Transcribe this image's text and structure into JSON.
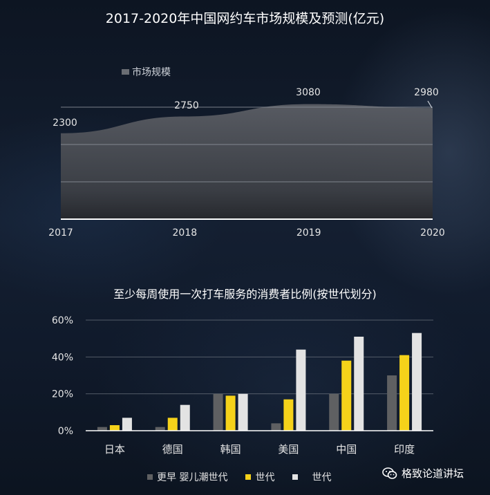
{
  "colors": {
    "area_top": "#5b5e65",
    "area_bottom": "#26282d",
    "grid": "#8a9099",
    "gen_older": "#5f6062",
    "gen_middle": "#f5d21a",
    "gen_young": "#e3e3e3",
    "text": "#ffffff"
  },
  "brand": {
    "name": "格致论道讲坛",
    "icon": "wechat-icon"
  },
  "chart_data": [
    {
      "type": "area",
      "title": "2017-2020年中国网约车市场规模及预测(亿元)",
      "x": [
        "2017",
        "2018",
        "2019",
        "2020"
      ],
      "series": [
        {
          "name": "市场规模",
          "values": [
            2300,
            2750,
            3080,
            2980
          ]
        }
      ],
      "data_labels": [
        "2300",
        "2750",
        "3080",
        "2980"
      ],
      "ylim": [
        0,
        3000
      ],
      "grid": true,
      "legend": "top-left"
    },
    {
      "type": "bar",
      "title": "至少每周使用一次打车服务的消费者比例(按世代划分)",
      "categories": [
        "日本",
        "德国",
        "韩国",
        "美国",
        "中国",
        "印度"
      ],
      "series": [
        {
          "name": "更早 婴儿潮世代",
          "values": [
            2,
            2,
            20,
            4,
            20,
            30
          ]
        },
        {
          "name": "世代",
          "values": [
            3,
            7,
            19,
            17,
            38,
            41
          ]
        },
        {
          "name": "世代",
          "values": [
            7,
            14,
            20,
            44,
            51,
            53
          ]
        }
      ],
      "yticks": [
        "0%",
        "20%",
        "40%",
        "60%"
      ],
      "ylim": [
        0,
        60
      ],
      "grid": true,
      "legend": "bottom"
    }
  ]
}
